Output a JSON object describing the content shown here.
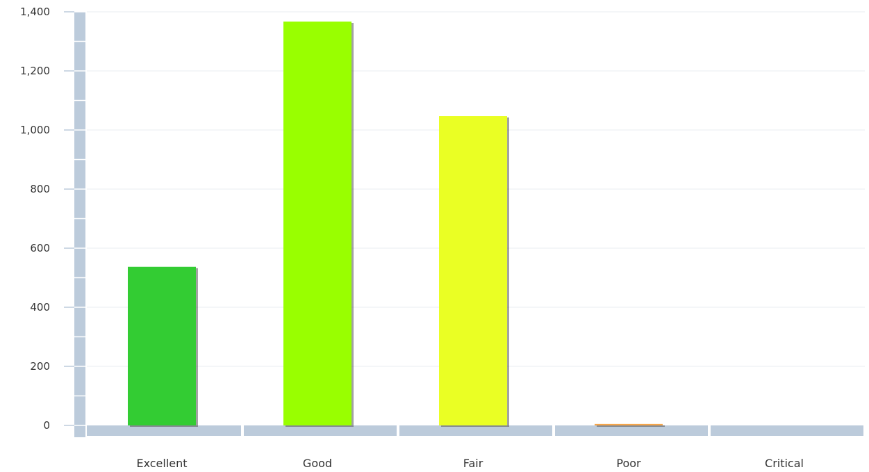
{
  "chart_data": {
    "type": "bar",
    "title": "",
    "xlabel": "",
    "ylabel": "",
    "categories": [
      "Excellent",
      "Good",
      "Fair",
      "Poor",
      "Critical"
    ],
    "values": [
      537,
      1367,
      1047,
      5,
      0
    ],
    "colors": [
      "#33cc33",
      "#99ff00",
      "#eaff24",
      "#f5a54a",
      "#e04040"
    ],
    "ylim": [
      0,
      1400
    ],
    "yticks": [
      0,
      200,
      400,
      600,
      800,
      1000,
      1200,
      1400
    ],
    "ytick_labels": [
      "0",
      "200",
      "400",
      "600",
      "800",
      "1,000",
      "1,200",
      "1,400"
    ],
    "grid": true,
    "legend": "none"
  },
  "style": {
    "axis_color": "#bccbdb",
    "grid_color": "#e8ecf0",
    "shadow_color": "#555555"
  }
}
